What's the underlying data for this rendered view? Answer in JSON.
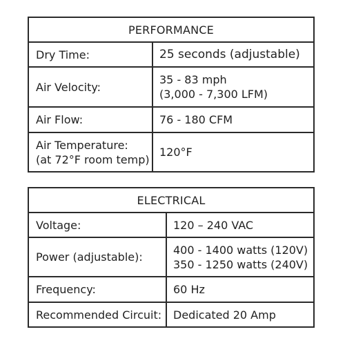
{
  "performance": {
    "title": "PERFORMANCE",
    "rows": [
      {
        "label": [
          "Dry Time:"
        ],
        "value": [
          "25 seconds (adjustable)"
        ]
      },
      {
        "label": [
          "Air Velocity:"
        ],
        "value": [
          "35 - 83 mph",
          "(3,000 - 7,300 LFM)"
        ]
      },
      {
        "label": [
          "Air Flow:"
        ],
        "value": [
          "76 - 180 CFM"
        ]
      },
      {
        "label": [
          "Air Temperature:",
          "(at 72°F room temp)"
        ],
        "value": [
          "120°F"
        ]
      }
    ]
  },
  "electrical": {
    "title": "ELECTRICAL",
    "rows": [
      {
        "label": [
          "Voltage:"
        ],
        "value": [
          "120 – 240 VAC"
        ]
      },
      {
        "label": [
          "Power (adjustable):"
        ],
        "value": [
          "400 - 1400 watts (120V)",
          "350 - 1250 watts (240V)"
        ]
      },
      {
        "label": [
          "Frequency:"
        ],
        "value": [
          "60 Hz"
        ]
      },
      {
        "label": [
          "Recommended Circuit:"
        ],
        "value": [
          "Dedicated 20 Amp"
        ]
      }
    ]
  }
}
